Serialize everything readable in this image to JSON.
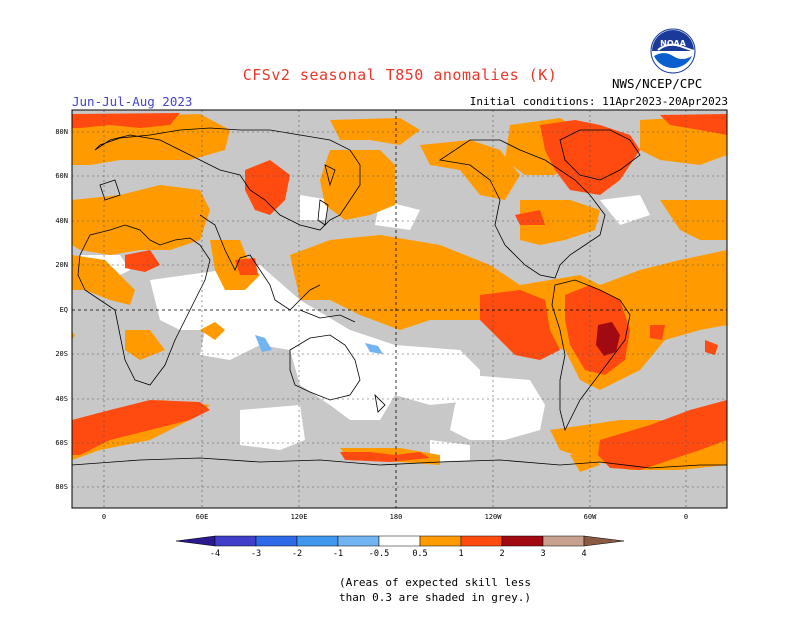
{
  "title": "CFSv2 seasonal T850 anomalies (K)",
  "season": "Jun-Jul-Aug 2023",
  "initial_conditions": "Initial conditions: 11Apr2023-20Apr2023",
  "agency": "NWS/NCEP/CPC",
  "logo_text": "NOAA",
  "lat_labels": [
    "80N",
    "60N",
    "40N",
    "20N",
    "EQ",
    "20S",
    "40S",
    "60S",
    "80S"
  ],
  "lon_labels": [
    "0",
    "60E",
    "120E",
    "180",
    "120W",
    "60W",
    "0"
  ],
  "colorbar": {
    "labels": [
      "-4",
      "-3",
      "-2",
      "-1",
      "-0.5",
      "0.5",
      "1",
      "2",
      "3",
      "4"
    ],
    "colors": {
      "below_-4": "#2a1a90",
      "-4_-3": "#3f3fc8",
      "-3_-2": "#2e6ae8",
      "-2_-1": "#3f98ee",
      "-1_-0.5": "#72b4f2",
      "-0.5_0.5": "#ffffff",
      "0.5_1": "#ff9b00",
      "1_2": "#ff4a10",
      "2_3": "#a00a10",
      "3_4": "#c8a090",
      "above_4": "#8a5a44"
    }
  },
  "note_line1": "(Areas of expected skill less",
  "note_line2": "than 0.3 are shaded in grey.)",
  "colors": {
    "low_skill_grey": "#c8c8c8",
    "title_red": "#e8382a",
    "season_blue": "#4444cc"
  }
}
